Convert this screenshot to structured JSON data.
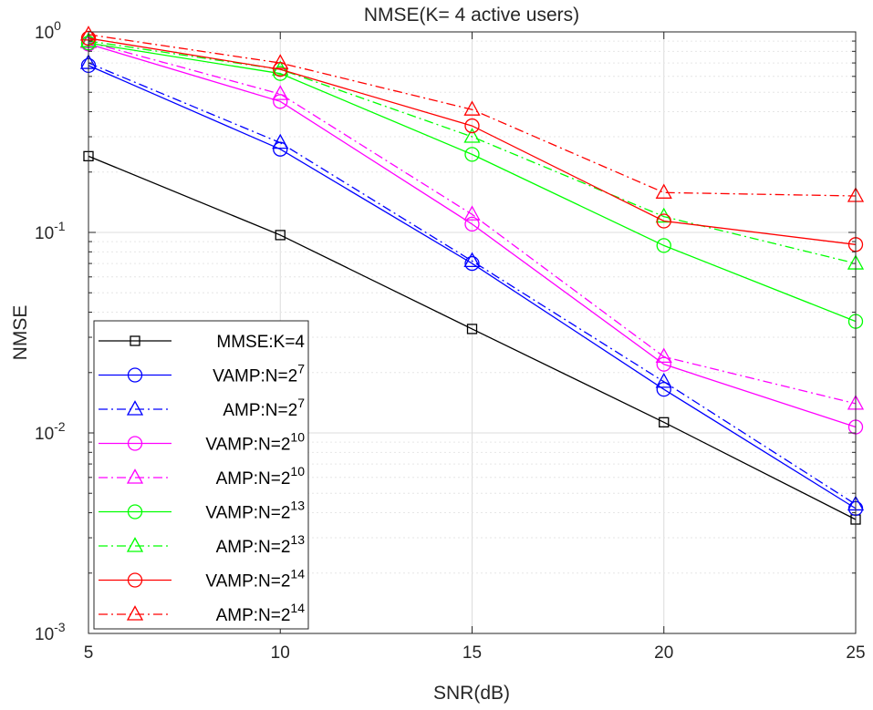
{
  "chart_data": {
    "type": "line",
    "title": "NMSE(K= 4  active users)",
    "xlabel": "SNR(dB)",
    "ylabel": "NMSE",
    "x": [
      5,
      10,
      15,
      20,
      25
    ],
    "xlim": [
      5,
      25
    ],
    "ylim": [
      0.001,
      1
    ],
    "yscale": "log",
    "grid": true,
    "x_ticks": [
      "5",
      "10",
      "15",
      "20",
      "25"
    ],
    "y_ticks": [
      {
        "base": "10",
        "exp": "0"
      },
      {
        "base": "10",
        "exp": "-1"
      },
      {
        "base": "10",
        "exp": "-2"
      },
      {
        "base": "10",
        "exp": "-3"
      }
    ],
    "legend_position": "bottom-left",
    "series": [
      {
        "name": "MMSE:K=4",
        "label": "MMSE:K=4",
        "sup": "",
        "color": "#000000",
        "dash": "solid",
        "marker": "square",
        "values": [
          0.24,
          0.097,
          0.033,
          0.0113,
          0.0037
        ]
      },
      {
        "name": "VAMP:N=2^7",
        "label": "VAMP:N=2",
        "sup": "7",
        "color": "#0000ff",
        "dash": "solid",
        "marker": "circle",
        "values": [
          0.68,
          0.26,
          0.07,
          0.0165,
          0.0042
        ]
      },
      {
        "name": "AMP:N=2^7",
        "label": "AMP:N=2",
        "sup": "7",
        "color": "#0000ff",
        "dash": "dashdot",
        "marker": "triangle",
        "values": [
          0.7,
          0.28,
          0.072,
          0.018,
          0.0044
        ]
      },
      {
        "name": "VAMP:N=2^10",
        "label": "VAMP:N=2",
        "sup": "10",
        "color": "#ff00ff",
        "dash": "solid",
        "marker": "circle",
        "values": [
          0.87,
          0.45,
          0.11,
          0.022,
          0.0107
        ]
      },
      {
        "name": "AMP:N=2^10",
        "label": "AMP:N=2",
        "sup": "10",
        "color": "#ff00ff",
        "dash": "dashdot",
        "marker": "triangle",
        "values": [
          0.89,
          0.49,
          0.123,
          0.024,
          0.014
        ]
      },
      {
        "name": "VAMP:N=2^13",
        "label": "VAMP:N=2",
        "sup": "13",
        "color": "#00ff00",
        "dash": "solid",
        "marker": "circle",
        "values": [
          0.88,
          0.62,
          0.245,
          0.086,
          0.036
        ]
      },
      {
        "name": "AMP:N=2^13",
        "label": "AMP:N=2",
        "sup": "13",
        "color": "#00ff00",
        "dash": "dashdot",
        "marker": "triangle",
        "values": [
          0.9,
          0.65,
          0.3,
          0.12,
          0.07
        ]
      },
      {
        "name": "VAMP:N=2^14",
        "label": "VAMP:N=2",
        "sup": "14",
        "color": "#ff0000",
        "dash": "solid",
        "marker": "circle",
        "values": [
          0.93,
          0.65,
          0.34,
          0.114,
          0.087
        ]
      },
      {
        "name": "AMP:N=2^14",
        "label": "AMP:N=2",
        "sup": "14",
        "color": "#ff0000",
        "dash": "dashdot",
        "marker": "triangle",
        "values": [
          0.97,
          0.7,
          0.41,
          0.158,
          0.152
        ]
      }
    ]
  }
}
